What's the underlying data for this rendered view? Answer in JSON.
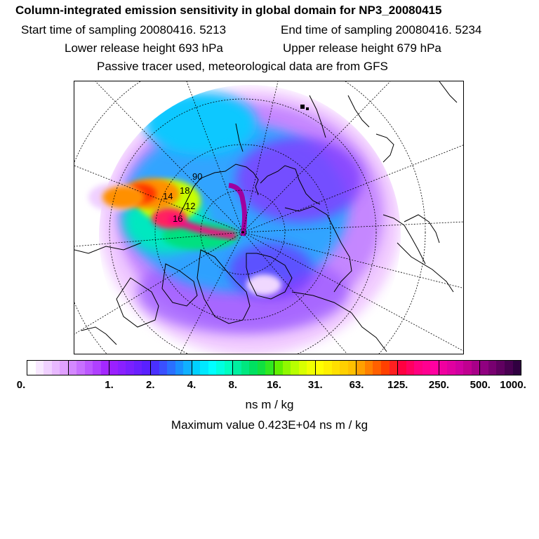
{
  "header": {
    "title": "Column-integrated emission sensitivity in global domain for NP3_20080415",
    "start_time": "Start time of sampling 20080416.  5213",
    "end_time": "End time of sampling 20080416.  5234",
    "lower_height": "Lower release height  693 hPa",
    "upper_height": "Upper release height  679 hPa",
    "tracer_note": "Passive tracer used, meteorological data are from GFS"
  },
  "map": {
    "projection": "north polar stereographic",
    "contour_labels": [
      "90",
      "18",
      "12",
      "16",
      "14"
    ]
  },
  "colorbar": {
    "tick_labels": [
      "0.",
      "1.",
      "2.",
      "4.",
      "8.",
      "16.",
      "31.",
      "63.",
      "125.",
      "250.",
      "500.",
      "1000."
    ],
    "boxes": [
      [
        "#ffffff",
        "#f8e8ff",
        "#f0d0ff",
        "#e8b8ff",
        "#e0a0ff"
      ],
      [
        "#d488ff",
        "#c870ff",
        "#bc58ff",
        "#b040ff",
        "#a428ff"
      ],
      [
        "#9a20ff",
        "#8a20ff",
        "#7a20ff",
        "#6a20ff",
        "#5a20ff"
      ],
      [
        "#4a30ff",
        "#3a50ff",
        "#2a70ff",
        "#1a90ff",
        "#10b0ff"
      ],
      [
        "#00d0ff",
        "#00e8ff",
        "#00ffff",
        "#00ffe0",
        "#00ffc0"
      ],
      [
        "#00f0a0",
        "#00e880",
        "#00e060",
        "#10e040",
        "#30e820"
      ],
      [
        "#60f000",
        "#90f800",
        "#b8ff00",
        "#d8ff00",
        "#f0ff00"
      ],
      [
        "#ffff00",
        "#fff000",
        "#ffe000",
        "#ffd000",
        "#ffc000"
      ],
      [
        "#ffa000",
        "#ff8000",
        "#ff6000",
        "#ff4000",
        "#ff2020"
      ],
      [
        "#ff0040",
        "#ff0060",
        "#ff0080",
        "#ff0090",
        "#ff00a0"
      ],
      [
        "#f000a0",
        "#e000a0",
        "#d000a0",
        "#c00090",
        "#a80088"
      ],
      [
        "#900080",
        "#780070",
        "#600060",
        "#480050",
        "#300040"
      ]
    ]
  },
  "units": "ns m / kg",
  "max_value": "Maximum value  0.423E+04 ns m / kg"
}
